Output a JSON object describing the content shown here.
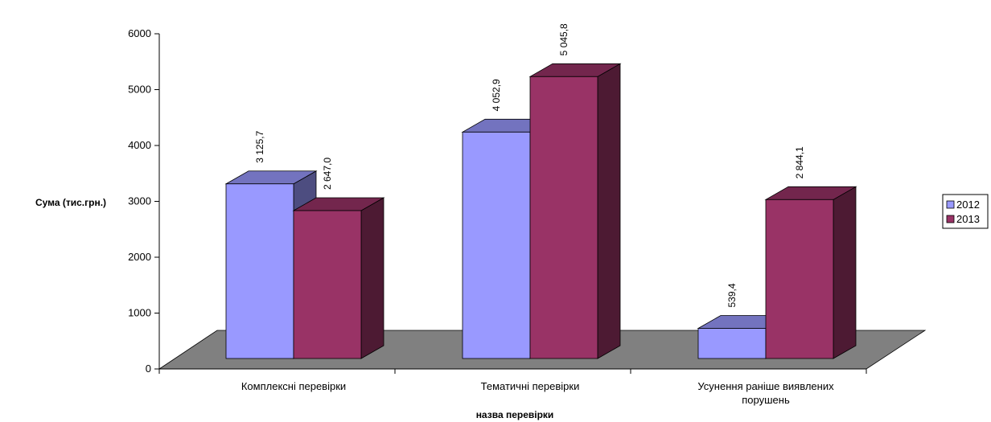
{
  "chart_data": {
    "type": "bar",
    "categories": [
      [
        "Комплексні перевірки"
      ],
      [
        "Тематичні перевірки"
      ],
      [
        "Усунення раніше виявлених",
        "порушень"
      ]
    ],
    "series": [
      {
        "name": "2012",
        "values": [
          3125.7,
          4052.9,
          539.4
        ],
        "labels": [
          "3 125,7",
          "4 052,9",
          "539,4"
        ],
        "color": "#9999ff"
      },
      {
        "name": "2013",
        "values": [
          2647.0,
          5045.8,
          2844.1
        ],
        "labels": [
          "2 647,0",
          "5 045,8",
          "2 844,1"
        ],
        "color": "#993366"
      }
    ],
    "xlabel": "назва перевірки",
    "ylabel": "Сума (тис.грн.)",
    "ylim": [
      0,
      6000
    ],
    "yticks": [
      0,
      1000,
      2000,
      3000,
      4000,
      5000,
      6000
    ],
    "grid": false,
    "legend": "right",
    "floor_color": "#808080"
  }
}
